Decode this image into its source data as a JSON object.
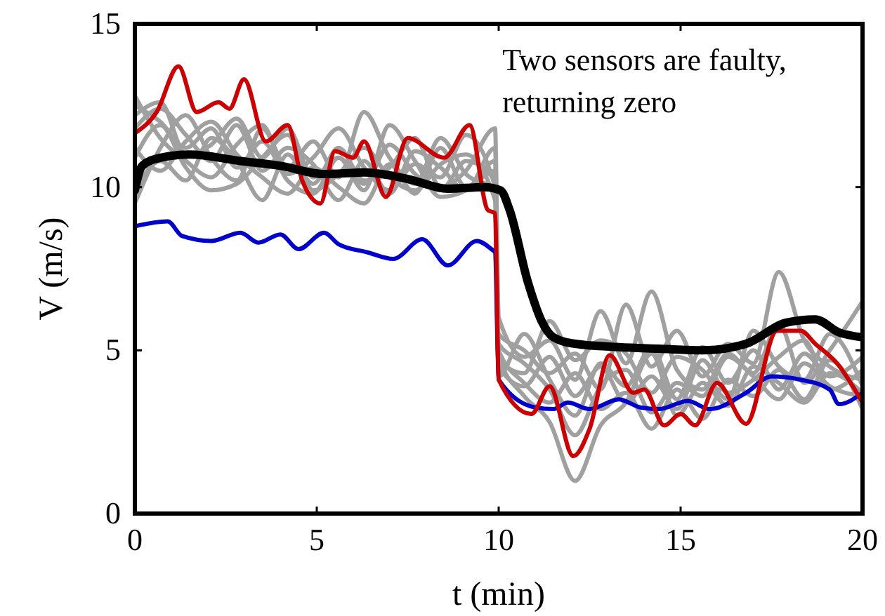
{
  "chart_data": {
    "type": "line",
    "xlabel": "t  (min)",
    "ylabel": "V  (m/s)",
    "xlim": [
      0,
      20
    ],
    "ylim": [
      0,
      15
    ],
    "xticks": [
      0,
      5,
      10,
      15,
      20
    ],
    "yticks": [
      0,
      5,
      10,
      15
    ],
    "grid": false,
    "marker": "none",
    "line_style": "solid",
    "annotations": [
      "Two sensors are faulty,\nreturning zero"
    ],
    "x": [
      0,
      0.7,
      1.4,
      2.1,
      2.8,
      3.5,
      4.2,
      4.9,
      5.6,
      6.3,
      7,
      7.7,
      8.4,
      9.1,
      9.9,
      10,
      10.7,
      11.4,
      12.1,
      12.8,
      13.5,
      14.2,
      14.9,
      15.6,
      16.3,
      17,
      17.7,
      18.4,
      19.1,
      20
    ],
    "series": [
      {
        "color": "#a0a0a0",
        "values": [
          12.5,
          12.0,
          11.2,
          11.8,
          10.6,
          11.4,
          10.2,
          9.8,
          10.9,
          10.1,
          11.3,
          10.4,
          9.9,
          10.8,
          10.2,
          5.2,
          4.6,
          3.8,
          2.4,
          3.9,
          4.4,
          3.1,
          4.0,
          3.6,
          4.8,
          4.2,
          3.5,
          4.6,
          3.9,
          3.6
        ]
      },
      {
        "color": "#a0a0a0",
        "values": [
          11.8,
          12.4,
          11.6,
          10.8,
          11.9,
          10.5,
          11.2,
          10.7,
          9.6,
          10.8,
          9.8,
          11.1,
          10.6,
          9.9,
          11.2,
          5.5,
          5.0,
          4.3,
          4.9,
          3.8,
          6.4,
          4.5,
          5.6,
          4.2,
          5.2,
          4.6,
          7.4,
          5.3,
          4.5,
          4.1
        ]
      },
      {
        "color": "#a0a0a0",
        "values": [
          9.5,
          11.2,
          12.2,
          10.9,
          10.2,
          11.8,
          10.6,
          11.4,
          10.3,
          12.3,
          10.9,
          10.1,
          11.5,
          10.4,
          9.9,
          4.8,
          3.6,
          2.8,
          1.0,
          2.7,
          3.4,
          4.9,
          3.0,
          4.0,
          3.3,
          4.5,
          4.0,
          3.4,
          4.3,
          3.7
        ]
      },
      {
        "color": "#a0a0a0",
        "values": [
          9.9,
          10.8,
          10.2,
          11.5,
          10.8,
          9.6,
          11.0,
          10.1,
          11.2,
          10.2,
          10.6,
          11.5,
          10.0,
          10.5,
          11.8,
          6.0,
          4.8,
          5.3,
          4.1,
          6.2,
          4.6,
          6.8,
          4.4,
          3.8,
          4.9,
          4.3,
          5.8,
          4.0,
          5.0,
          6.5
        ]
      },
      {
        "color": "#a0a0a0",
        "values": [
          11.2,
          10.5,
          11.4,
          12.0,
          11.0,
          10.3,
          9.8,
          10.6,
          10.0,
          9.5,
          10.7,
          9.8,
          11.2,
          10.0,
          10.5,
          5.0,
          4.0,
          3.4,
          4.3,
          3.2,
          3.7,
          2.6,
          3.8,
          2.9,
          4.1,
          3.6,
          4.4,
          3.5,
          4.7,
          3.2
        ]
      },
      {
        "color": "#a0a0a0",
        "values": [
          12.8,
          11.5,
          10.8,
          10.3,
          11.3,
          11.9,
          10.4,
          10.9,
          11.8,
          10.6,
          9.9,
          10.7,
          10.3,
          11.6,
          10.0,
          4.5,
          3.9,
          4.8,
          3.6,
          4.5,
          3.4,
          4.2,
          3.2,
          4.7,
          3.7,
          4.1,
          4.8,
          5.3,
          3.8,
          4.4
        ]
      },
      {
        "color": "#a0a0a0",
        "values": [
          10.9,
          11.9,
          10.6,
          9.9,
          10.1,
          10.9,
          11.6,
          9.9,
          10.4,
          11.2,
          10.3,
          9.9,
          10.7,
          11.0,
          9.6,
          4.2,
          5.5,
          4.1,
          3.0,
          4.6,
          3.9,
          5.1,
          3.5,
          5.1,
          4.0,
          5.0,
          3.8,
          4.9,
          4.2,
          4.8
        ]
      },
      {
        "color": "#a0a0a0",
        "values": [
          12.2,
          12.6,
          11.0,
          11.3,
          12.1,
          10.9,
          11.8,
          10.3,
          10.9,
          9.9,
          11.9,
          10.8,
          9.7,
          9.9,
          10.8,
          4.7,
          4.3,
          5.9,
          4.7,
          5.3,
          4.9,
          3.7,
          4.8,
          4.4,
          3.5,
          5.6,
          4.5,
          4.1,
          5.5,
          3.9
        ]
      },
      {
        "color": "#0000cc",
        "x": [
          0,
          0.9,
          1.3,
          2.1,
          2.9,
          3.4,
          4.0,
          4.5,
          5.2,
          5.6,
          6.4,
          7.1,
          7.9,
          8.6,
          9.4,
          9.8,
          9.9,
          10,
          11.0,
          11.5,
          11.9,
          12.5,
          13.3,
          13.9,
          14.4,
          15.2,
          15.8,
          16.8,
          17.5,
          18.3,
          19.1,
          19.35,
          20
        ],
        "values": [
          8.8,
          8.95,
          8.5,
          8.35,
          8.6,
          8.3,
          8.55,
          8.1,
          8.6,
          8.25,
          8.0,
          7.8,
          8.4,
          7.6,
          8.35,
          8.1,
          8.0,
          4.1,
          3.25,
          3.2,
          3.4,
          3.2,
          3.5,
          3.25,
          3.2,
          3.45,
          3.2,
          3.7,
          4.2,
          4.1,
          3.8,
          3.35,
          3.7
        ]
      },
      {
        "color": "#cc0000",
        "x": [
          0,
          0.6,
          1.2,
          1.7,
          2.3,
          2.6,
          3.0,
          3.6,
          4.2,
          4.6,
          5.1,
          5.5,
          6.0,
          6.3,
          6.9,
          7.5,
          8.5,
          9.2,
          9.7,
          9.9,
          10,
          10.9,
          11.4,
          12.05,
          12.5,
          13.05,
          13.7,
          14.0,
          14.55,
          15.0,
          15.4,
          16.0,
          16.8,
          17.65,
          18.3,
          18.7,
          19.3,
          20
        ],
        "values": [
          11.65,
          12.3,
          13.7,
          12.3,
          12.6,
          12.4,
          13.3,
          11.4,
          11.9,
          10.2,
          9.5,
          11.1,
          10.9,
          11.4,
          9.7,
          11.5,
          10.9,
          11.9,
          9.3,
          9.2,
          4.1,
          3.05,
          3.9,
          1.76,
          2.6,
          4.85,
          3.7,
          3.8,
          2.7,
          3.05,
          2.7,
          4.0,
          2.75,
          5.6,
          5.6,
          5.2,
          4.6,
          3.4
        ]
      },
      {
        "color": "#000000",
        "x": [
          0,
          0.2,
          0.7,
          1.5,
          2.9,
          4.0,
          5.2,
          6.3,
          7.5,
          8.6,
          9.6,
          10.05,
          10.3,
          10.8,
          11.2,
          11.5,
          12.1,
          13.3,
          14.4,
          15.6,
          16.8,
          17.9,
          18.7,
          19.35,
          20
        ],
        "values": [
          9.9,
          10.65,
          10.9,
          11.0,
          10.8,
          10.65,
          10.4,
          10.45,
          10.25,
          9.95,
          10.0,
          9.9,
          9.3,
          7.1,
          5.85,
          5.4,
          5.2,
          5.1,
          5.05,
          5.0,
          5.2,
          5.85,
          5.95,
          5.55,
          5.4
        ]
      }
    ]
  }
}
